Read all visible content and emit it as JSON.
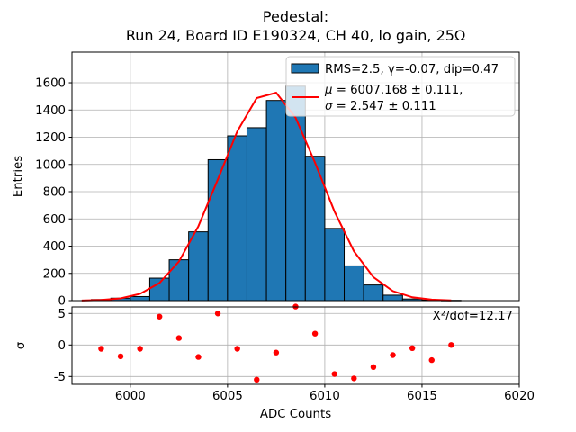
{
  "title": {
    "line1": "Pedestal:",
    "line2": "Run 24, Board ID E190324, CH 40, lo gain, 25Ω"
  },
  "legend": {
    "hist_label": "RMS=2.5, γ=-0.07, dip=0.47",
    "fit_label_line1": "μ = 6007.168 ± 0.111,",
    "fit_label_line2": "σ = 2.547 ± 0.111"
  },
  "annotations": {
    "chi2": "X²/dof=12.17"
  },
  "colors": {
    "bar_fill": "#1f77b4",
    "bar_edge": "#000000",
    "fit_line": "#ff0000",
    "pull_dot": "#ff0000",
    "grid": "#b0b0b0",
    "legend_border": "#cccccc"
  },
  "chart_data": {
    "type": "bar",
    "subtype": "histogram-with-fit-and-pulls",
    "xlabel": "ADC Counts",
    "ylabel_top": "Entries",
    "ylabel_bottom": "σ",
    "xlim": [
      5997,
      6020
    ],
    "ylim_top": [
      0,
      1825
    ],
    "ylim_bottom": [
      -6.24,
      6.04
    ],
    "xticks": [
      6000,
      6005,
      6010,
      6015,
      6020
    ],
    "yticks_top": [
      0,
      200,
      400,
      600,
      800,
      1000,
      1200,
      1400,
      1600
    ],
    "yticks_bottom": [
      5,
      0,
      -5
    ],
    "grid": true,
    "legend_position": "upper right",
    "bin_width": 1,
    "bin_left_edges": [
      5998,
      5999,
      6000,
      6001,
      6002,
      6003,
      6004,
      6005,
      6006,
      6007,
      6008,
      6009,
      6010,
      6011,
      6012,
      6013,
      6014,
      6015,
      6016
    ],
    "counts": [
      8,
      18,
      30,
      165,
      300,
      505,
      1035,
      1210,
      1270,
      1470,
      1575,
      1060,
      530,
      255,
      115,
      40,
      12,
      5,
      2
    ],
    "fit": {
      "mu": 6007.168,
      "mu_err": 0.111,
      "sigma": 2.547,
      "sigma_err": 0.111,
      "amplitude": 1540,
      "rms": 2.5,
      "gamma": -0.07,
      "dip": 0.47,
      "chi2_over_dof": 12.17,
      "curve_x": [
        5997.5,
        5998.5,
        5999.5,
        6000.5,
        6001.5,
        6002.5,
        6003.5,
        6004.5,
        6005.5,
        6006.5,
        6007.5,
        6008.5,
        6009.5,
        6010.5,
        6011.5,
        6012.5,
        6013.5,
        6014.5,
        6015.5,
        6016.5
      ],
      "curve_y": [
        1.1,
        4.7,
        16.6,
        50.0,
        129.4,
        287.2,
        546.0,
        889.8,
        1242.8,
        1487.9,
        1527.0,
        1343.1,
        1012.7,
        654.4,
        362.5,
        172.2,
        70.1,
        24.5,
        7.3,
        1.9
      ]
    },
    "pulls": {
      "x": [
        5998.5,
        5999.5,
        6000.5,
        6001.5,
        6002.5,
        6003.5,
        6004.5,
        6005.5,
        6006.5,
        6007.5,
        6008.5,
        6009.5,
        6010.5,
        6011.5,
        6012.5,
        6013.5,
        6014.5,
        6015.5,
        6016.5
      ],
      "sigma": [
        -0.6,
        -1.8,
        -0.6,
        4.5,
        1.1,
        -1.9,
        5.0,
        -0.6,
        -5.5,
        -1.2,
        6.1,
        1.8,
        -4.6,
        -5.3,
        -3.5,
        -1.6,
        -0.5,
        -2.4,
        0.0
      ]
    }
  }
}
